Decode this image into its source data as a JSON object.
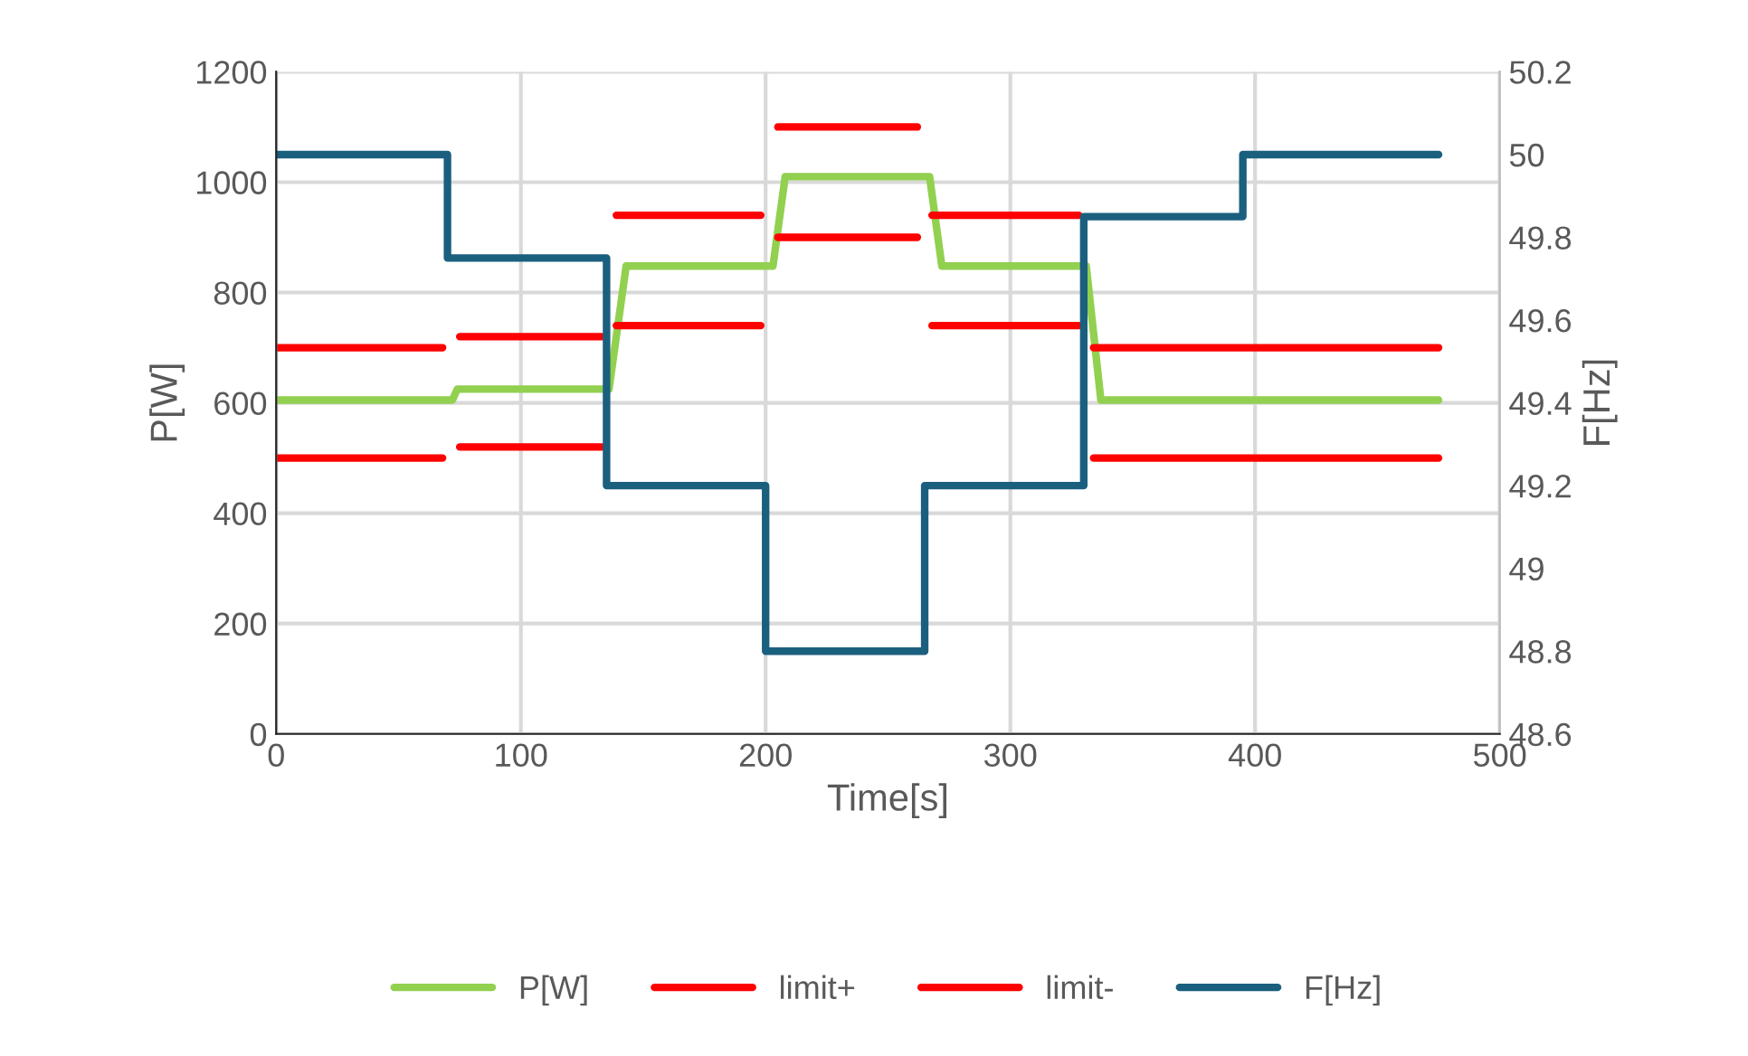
{
  "chart_data": {
    "type": "line",
    "xlabel": "Time[s]",
    "ylabel": "P[W]",
    "y2label": "F[Hz]",
    "xlim": [
      0,
      500
    ],
    "xticks": [
      0,
      100,
      200,
      300,
      400,
      500
    ],
    "ylim": [
      0,
      1200
    ],
    "yticks": [
      0,
      200,
      400,
      600,
      800,
      1000,
      1200
    ],
    "y2lim": [
      48.6,
      50.2
    ],
    "y2ticks": [
      48.6,
      48.8,
      49,
      49.2,
      49.4,
      49.6,
      49.8,
      50,
      50.2
    ],
    "grid": true,
    "legend": "bottom",
    "marker": "none",
    "line_style": "solid",
    "series": [
      {
        "name": "P[W]",
        "color": "#92d050",
        "x": [
          0,
          72,
          74,
          136,
          143,
          203,
          208,
          267,
          272,
          331,
          337,
          475
        ],
        "values": [
          605,
          605,
          625,
          625,
          848,
          848,
          1010,
          1010,
          848,
          848,
          605,
          605
        ]
      },
      {
        "name": "limit+",
        "color": "#ff0000",
        "x": [
          0,
          68,
          71,
          75,
          133,
          136,
          139,
          198,
          201,
          205,
          262,
          265,
          268,
          328,
          331,
          334,
          475
        ],
        "values": [
          700,
          700,
          null,
          720,
          720,
          null,
          940,
          940,
          null,
          1100,
          1100,
          null,
          940,
          940,
          null,
          700,
          700
        ]
      },
      {
        "name": "limit-",
        "color": "#ff0000",
        "x": [
          0,
          68,
          71,
          75,
          133,
          136,
          139,
          198,
          201,
          205,
          262,
          265,
          268,
          328,
          331,
          334,
          475
        ],
        "values": [
          500,
          500,
          null,
          520,
          520,
          null,
          740,
          740,
          null,
          900,
          900,
          null,
          740,
          740,
          null,
          500,
          500
        ]
      },
      {
        "name": "F[Hz]",
        "color": "#1b5f7f",
        "axis": "y2",
        "x": [
          0,
          70,
          70,
          135,
          135,
          200,
          200,
          265,
          265,
          330,
          330,
          395,
          395,
          475
        ],
        "values": [
          50,
          50,
          49.75,
          49.75,
          49.2,
          49.2,
          48.8,
          48.8,
          49.2,
          49.2,
          49.85,
          49.85,
          50,
          50
        ]
      }
    ]
  }
}
